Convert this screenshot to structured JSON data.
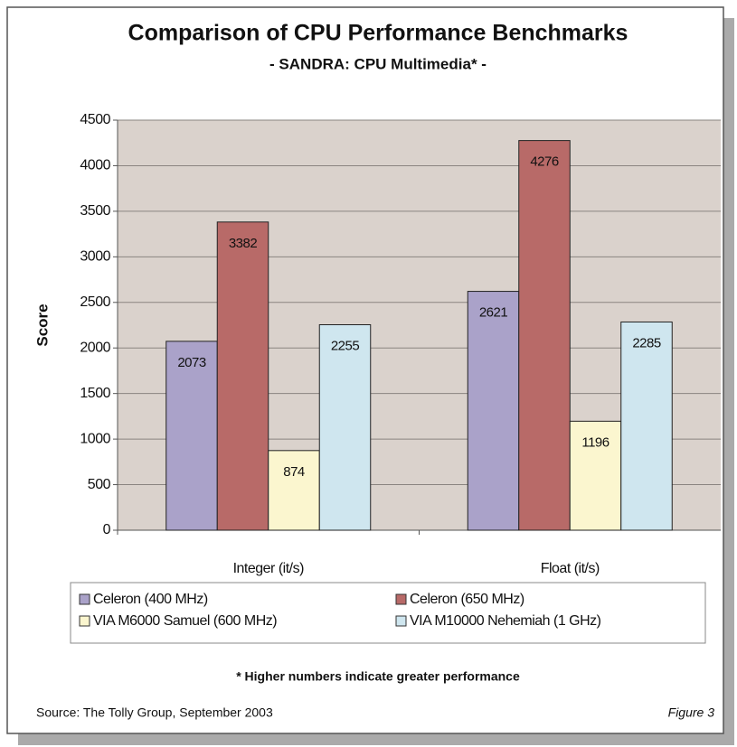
{
  "chart_data": {
    "type": "bar",
    "title": "Comparison of CPU Performance Benchmarks",
    "subtitle": "- SANDRA: CPU Multimedia* -",
    "ylabel": "Score",
    "categories": [
      "Integer (it/s)",
      "Float (it/s)"
    ],
    "series": [
      {
        "name": "Celeron (400 MHz)",
        "color": "#aaa2c9",
        "values": [
          2073,
          2621
        ]
      },
      {
        "name": "Celeron (650 MHz)",
        "color": "#b86a68",
        "values": [
          3382,
          4276
        ]
      },
      {
        "name": "VIA M6000 Samuel (600 MHz)",
        "color": "#fbf6cf",
        "values": [
          874,
          1196
        ]
      },
      {
        "name": "VIA M10000 Nehemiah (1 GHz)",
        "color": "#cfe6ef",
        "values": [
          2255,
          2285
        ]
      }
    ],
    "ylim": [
      0,
      4500
    ],
    "yticks": [
      0,
      500,
      1000,
      1500,
      2000,
      2500,
      3000,
      3500,
      4000,
      4500
    ],
    "grid": true,
    "footnote": "* Higher numbers indicate greater performance",
    "source": "Source: The Tolly Group, September 2003",
    "figure_label": "Figure 3"
  }
}
